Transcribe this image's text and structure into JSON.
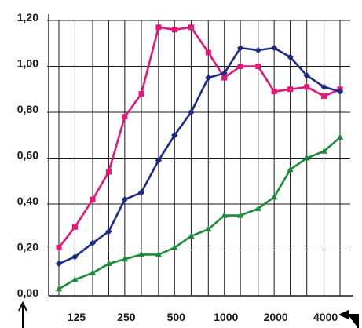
{
  "chart_data": {
    "type": "line",
    "title": "",
    "xlabel": "",
    "ylabel": "",
    "x": [
      100,
      125,
      160,
      200,
      250,
      315,
      400,
      500,
      630,
      800,
      1000,
      1250,
      1600,
      2000,
      2500,
      3150,
      4000,
      5000
    ],
    "x_tick_labels": [
      "125",
      "250",
      "500",
      "1000",
      "2000",
      "4000"
    ],
    "x_tick_values": [
      125,
      250,
      500,
      1000,
      2000,
      4000
    ],
    "y_tick_labels": [
      "0,00",
      "0,20",
      "0,40",
      "0,60",
      "0,80",
      "1,00",
      "1,20"
    ],
    "ylim": [
      0,
      1.2
    ],
    "grid": true,
    "series": [
      {
        "color": "#e6157a",
        "marker": "square",
        "values": [
          0.21,
          0.3,
          0.42,
          0.54,
          0.78,
          0.88,
          1.17,
          1.16,
          1.17,
          1.06,
          0.95,
          1.0,
          1.0,
          0.89,
          0.9,
          0.91,
          0.87,
          0.9
        ]
      },
      {
        "color": "#1d2a86",
        "marker": "diamond",
        "values": [
          0.14,
          0.17,
          0.23,
          0.28,
          0.42,
          0.45,
          0.59,
          0.7,
          0.8,
          0.95,
          0.97,
          1.08,
          1.07,
          1.08,
          1.04,
          0.96,
          0.91,
          0.89
        ]
      },
      {
        "color": "#1c8a3a",
        "marker": "triangle",
        "values": [
          0.03,
          0.07,
          0.1,
          0.14,
          0.16,
          0.18,
          0.18,
          0.21,
          0.26,
          0.29,
          0.35,
          0.35,
          0.38,
          0.43,
          0.55,
          0.6,
          0.63,
          0.69
        ]
      }
    ]
  }
}
